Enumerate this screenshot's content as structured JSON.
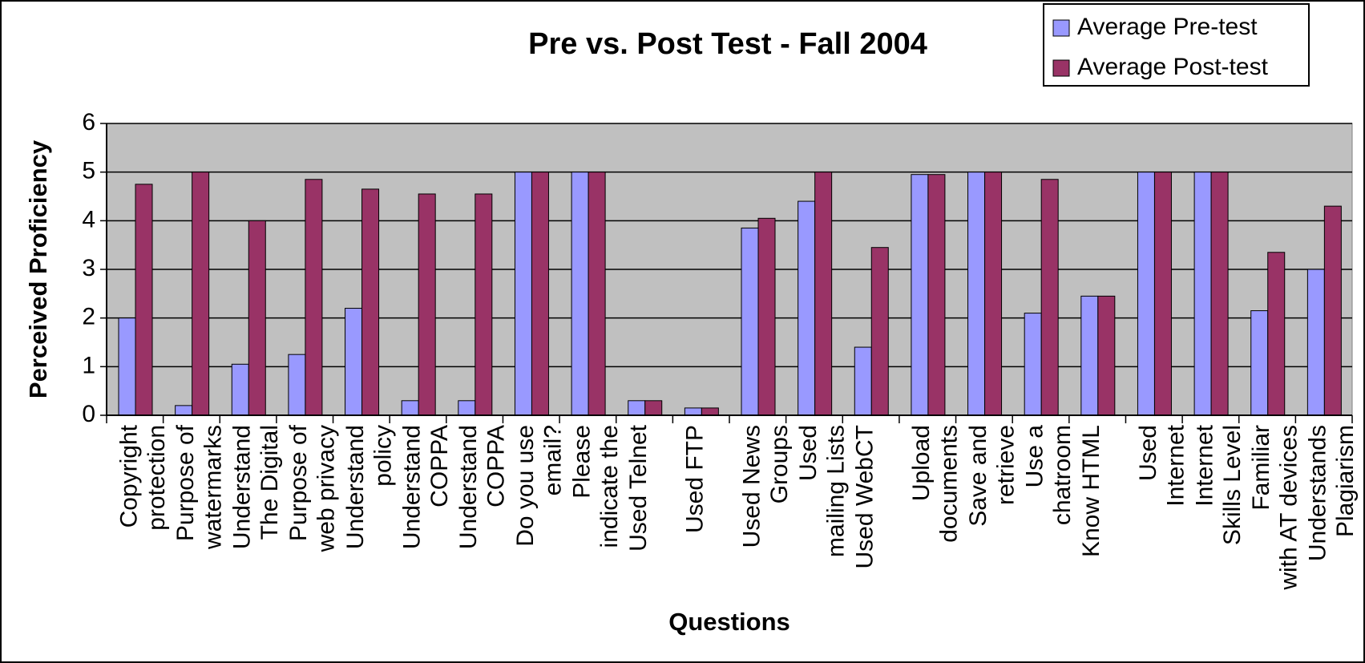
{
  "chart_data": {
    "type": "bar",
    "title": "Pre vs. Post Test - Fall 2004",
    "x_label": "Questions",
    "y_label": "Perceived Proficiency",
    "categories": [
      "Copyright protection",
      "Purpose of watermarks",
      "Understand The Digital",
      "Purpose of web privacy",
      "Understand policy",
      "Understand COPPA",
      "Understand COPPA",
      "Do you use email?",
      "Please indicate the",
      "Used Telnet",
      "Used FTP",
      "Used News Groups",
      "Used mailing Lists",
      "Used WebCT",
      "Upload documents",
      "Save and retrieve",
      "Use a chatroom",
      "Know HTML",
      "Used Internet",
      "Internet Skills Level",
      "Familiar with AT devices",
      "Understands Plagiarism"
    ],
    "series": [
      {
        "name": "Average Pre-test",
        "color": "#9999ff",
        "values": [
          2,
          0.2,
          1.05,
          1.25,
          2.2,
          0.3,
          0.3,
          5,
          5,
          0.3,
          0.15,
          3.85,
          4.4,
          1.4,
          4.95,
          5,
          2.1,
          2.45,
          5,
          5,
          2.15,
          3
        ]
      },
      {
        "name": "Average Post-test",
        "color": "#993366",
        "values": [
          4.75,
          5,
          4,
          4.85,
          4.65,
          4.55,
          4.55,
          5,
          5,
          0.3,
          0.15,
          4.05,
          5,
          3.45,
          4.95,
          5,
          4.85,
          2.45,
          5,
          5,
          3.35,
          4.3
        ]
      }
    ],
    "ylim": [
      0,
      6
    ],
    "yticks": [
      0,
      1,
      2,
      3,
      4,
      5,
      6
    ],
    "grid": true,
    "legend": "top-right",
    "plot_background": "#c0c0c0"
  }
}
